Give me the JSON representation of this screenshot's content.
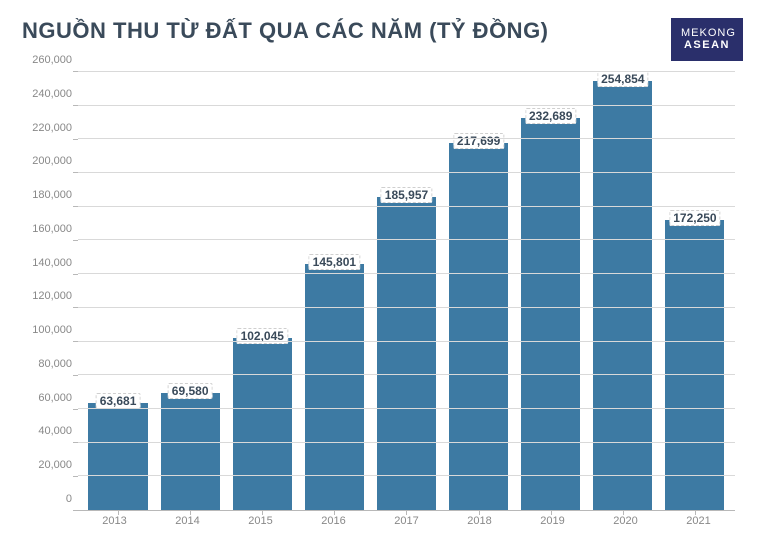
{
  "header": {
    "title": "NGUỒN THU TỪ ĐẤT QUA CÁC NĂM (TỶ ĐỒNG)",
    "logo_line1": "MEKONG",
    "logo_line2": "ASEAN"
  },
  "chart": {
    "type": "bar",
    "categories": [
      "2013",
      "2014",
      "2015",
      "2016",
      "2017",
      "2018",
      "2019",
      "2020",
      "2021"
    ],
    "values": [
      63681,
      69580,
      102045,
      145801,
      185957,
      217699,
      232689,
      254854,
      172250
    ],
    "value_labels": [
      "63,681",
      "69,580",
      "102,045",
      "145,801",
      "185,957",
      "217,699",
      "232,689",
      "254,854",
      "172,250"
    ],
    "bar_color": "#3d7aa3",
    "ylim": [
      0,
      260000
    ],
    "ytick_step": 20000,
    "ytick_labels": [
      "0",
      "20,000",
      "40,000",
      "60,000",
      "80,000",
      "100,000",
      "120,000",
      "140,000",
      "160,000",
      "180,000",
      "200,000",
      "220,000",
      "240,000",
      "260,000"
    ],
    "background_color": "#ffffff",
    "grid_color": "#d9d9d9",
    "axis_color": "#b8b8b8",
    "title_color": "#3a4a5a",
    "title_fontsize": 22,
    "label_fontsize": 11,
    "value_label_fontsize": 12,
    "value_label_color": "#3a4a5a",
    "axis_label_color": "#888888",
    "bar_width": 0.82
  }
}
